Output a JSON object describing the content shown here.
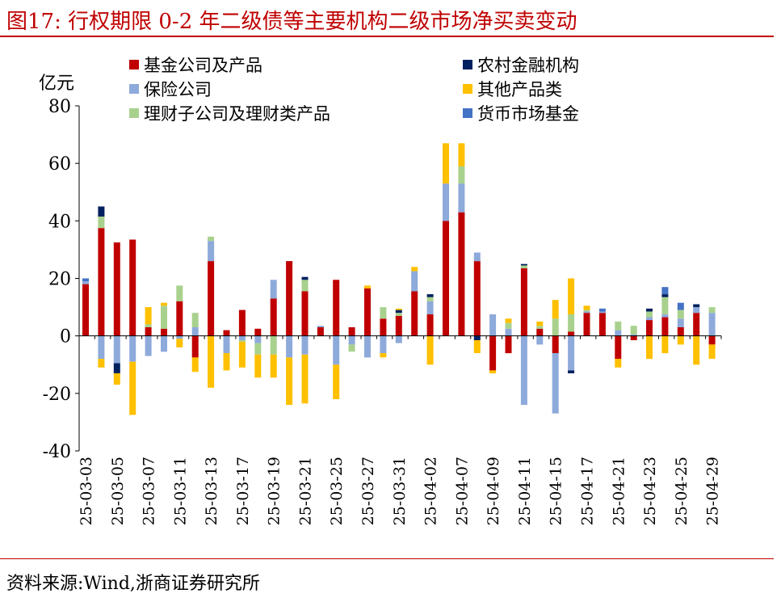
{
  "header": {
    "title": "图17:   行权期限 0-2 年二级债等主要机构二级市场净买卖变动"
  },
  "source": "资料来源:Wind,浙商证券研究所",
  "colors": {
    "title_red": "#c00000",
    "fund": "#c00000",
    "insurance": "#8eaadb",
    "wealth": "#a9d18e",
    "rural": "#002060",
    "other": "#ffc000",
    "mmf": "#4472c4"
  },
  "chart_data": {
    "type": "bar",
    "stacked": true,
    "ylabel": "亿元",
    "ylim": [
      -40,
      80
    ],
    "yticks": [
      80,
      60,
      40,
      20,
      0,
      -20,
      -40
    ],
    "grid": false,
    "legend_position": "top",
    "x_tick_labels": [
      "25-03-03",
      "25-03-05",
      "25-03-07",
      "25-03-11",
      "25-03-13",
      "25-03-17",
      "25-03-19",
      "25-03-21",
      "25-03-25",
      "25-03-27",
      "25-03-31",
      "25-04-02",
      "25-04-07",
      "25-04-09",
      "25-04-11",
      "25-04-15",
      "25-04-17",
      "25-04-21",
      "25-04-23",
      "25-04-25",
      "25-04-29"
    ],
    "series": [
      {
        "name": "基金公司及产品",
        "key": "fund",
        "values": [
          18,
          37.5,
          32.5,
          33.5,
          3,
          2.5,
          12,
          -7.5,
          26,
          2,
          9,
          2.5,
          13,
          26,
          15.5,
          3,
          19.5,
          3,
          16.5,
          6,
          7,
          15.5,
          7.5,
          40,
          43,
          26,
          -12,
          -6,
          23.5,
          2.5,
          -6,
          1.5,
          8,
          8,
          -8,
          -1.5,
          5.5,
          6.5,
          3,
          8,
          -3
        ]
      },
      {
        "name": "保险公司",
        "key": "insurance",
        "values": [
          1,
          -8,
          -9.5,
          -9,
          -7,
          -5.5,
          -1,
          3,
          7,
          -6,
          -1.5,
          -2.5,
          6.5,
          -7.5,
          -6.5,
          0.5,
          -10,
          -3,
          -7.5,
          -6,
          -2.5,
          7,
          4.5,
          13,
          10,
          3,
          7.5,
          2.5,
          -24,
          -3,
          -21,
          -12,
          0.5,
          0.5,
          2,
          0.5,
          1,
          1,
          3,
          2,
          8
        ]
      },
      {
        "name": "理财子公司及理财类产品",
        "key": "wealth",
        "values": [
          0,
          4,
          0,
          0,
          1,
          8,
          5.5,
          5,
          1.5,
          0,
          -0.5,
          -4,
          -6.5,
          0,
          4,
          0,
          0,
          -2.5,
          0,
          4,
          1,
          0,
          1.5,
          0,
          6,
          0,
          0,
          2,
          1,
          1,
          6,
          6,
          0.5,
          0,
          3,
          3,
          2,
          6,
          3,
          0,
          2
        ]
      },
      {
        "name": "农村金融机构",
        "key": "rural",
        "values": [
          0,
          3.5,
          -3.5,
          0,
          0,
          0,
          0,
          0,
          0,
          0,
          0,
          0,
          0,
          0,
          1,
          0,
          0,
          0,
          0,
          0,
          1,
          0,
          1,
          0,
          0,
          -1.5,
          0,
          0,
          0.5,
          0,
          0,
          -1,
          0,
          0,
          0,
          0,
          1,
          1,
          0,
          1,
          0
        ]
      },
      {
        "name": "其他产品类",
        "key": "other",
        "values": [
          0,
          -3,
          -4,
          -18.5,
          6,
          1,
          -3,
          -5,
          -18,
          -6,
          -9,
          -8,
          -8,
          -16.5,
          -17,
          0,
          -12,
          0,
          1,
          -1.5,
          0.5,
          1.5,
          -10,
          14,
          8,
          -4.5,
          -1,
          1.5,
          0,
          1.5,
          6.5,
          12.5,
          1.5,
          0,
          -3,
          0,
          -8,
          -6,
          -3,
          -10,
          -5
        ]
      },
      {
        "name": "货币市场基金",
        "key": "mmf",
        "values": [
          1,
          0,
          0,
          0,
          0,
          0,
          0,
          0,
          0,
          0,
          0,
          0,
          0,
          0,
          0,
          0,
          0,
          0,
          0,
          0,
          0,
          0,
          0,
          0,
          0,
          0,
          0,
          0,
          0,
          0,
          0,
          0,
          0,
          1,
          0,
          0,
          0,
          2.5,
          2.5,
          0,
          0
        ]
      }
    ]
  }
}
